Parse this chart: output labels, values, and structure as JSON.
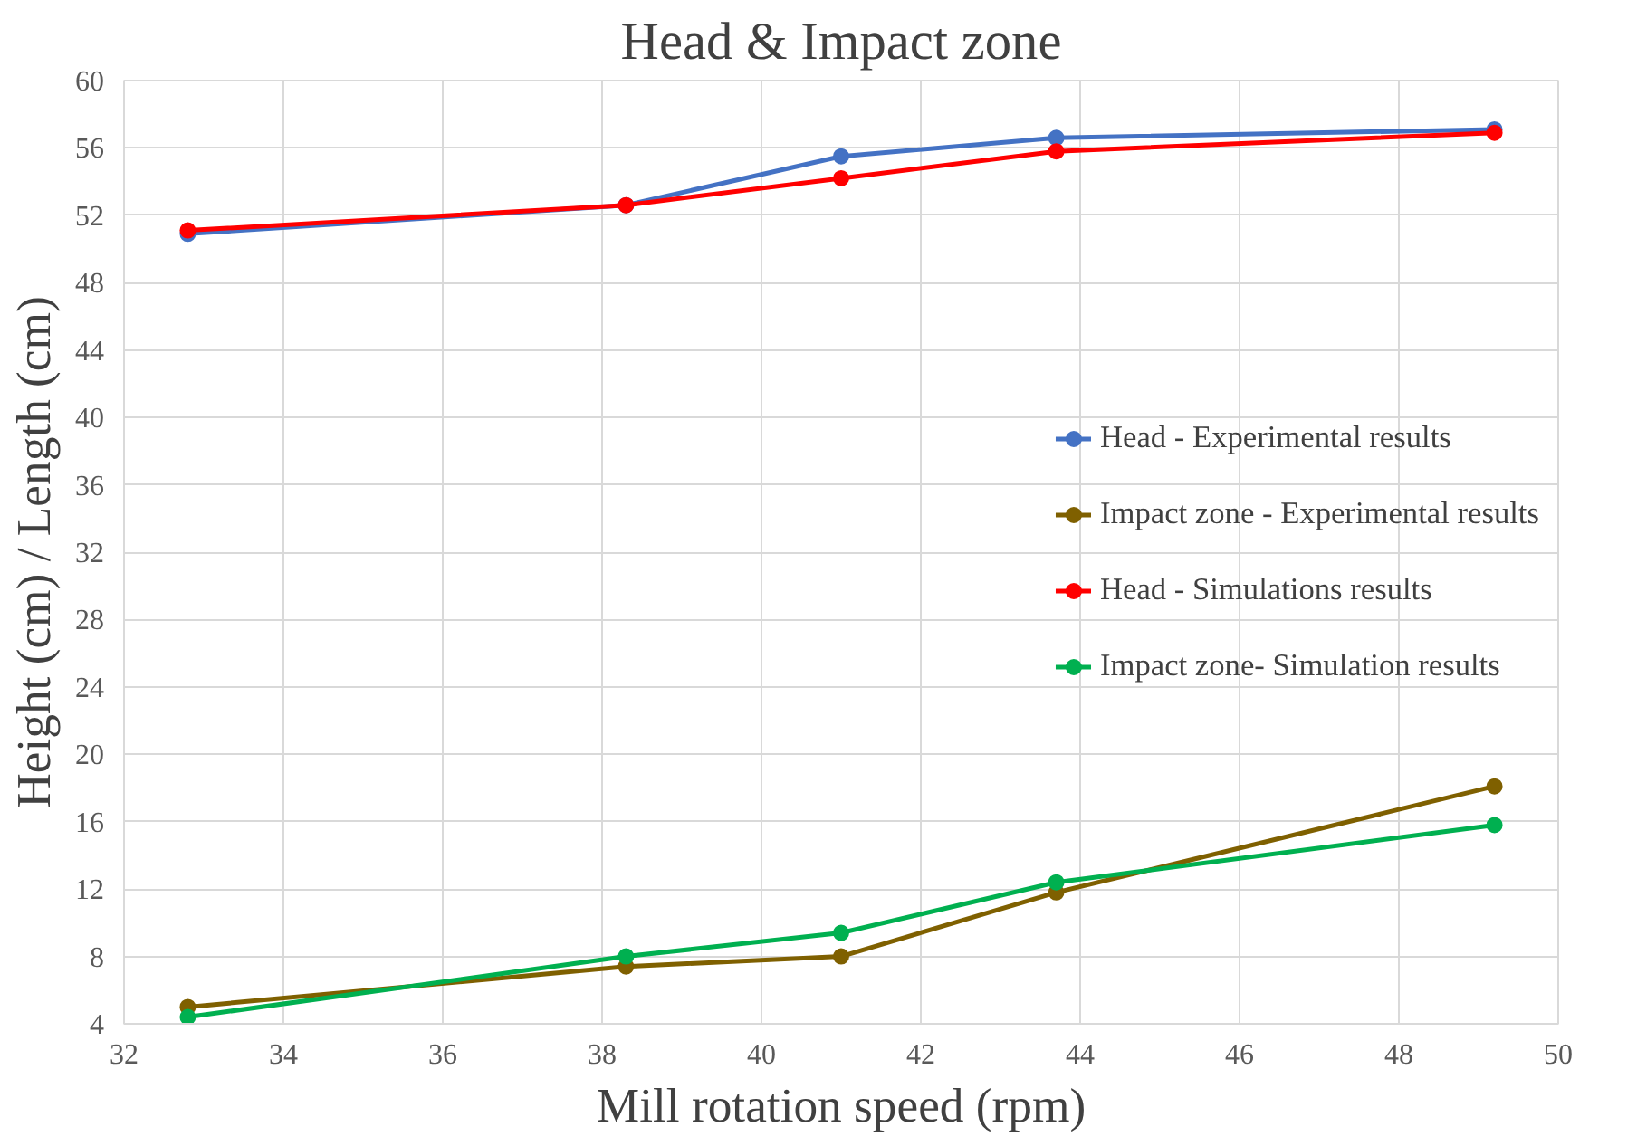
{
  "chart_data": {
    "type": "line",
    "title": "Head & Impact zone",
    "xlabel": "Mill rotation speed (rpm)",
    "ylabel": "Height (cm) / Length (cm)",
    "x": [
      32.8,
      38.3,
      41.0,
      43.7,
      49.2
    ],
    "series": [
      {
        "name": "Head - Experimental results",
        "color": "#4472c4",
        "values": [
          50.9,
          52.6,
          55.5,
          56.6,
          57.1
        ]
      },
      {
        "name": "Impact zone - Experimental results",
        "color": "#7f6000",
        "values": [
          5.0,
          7.4,
          8.0,
          11.8,
          18.1
        ]
      },
      {
        "name": "Head - Simulations results",
        "color": "#ff0000",
        "values": [
          51.1,
          52.6,
          54.2,
          55.8,
          56.9
        ]
      },
      {
        "name": "Impact zone- Simulation results",
        "color": "#00b050",
        "values": [
          4.4,
          8.0,
          9.4,
          12.4,
          15.8
        ]
      }
    ],
    "xlim": [
      32,
      50
    ],
    "xticks": [
      32,
      34,
      36,
      38,
      40,
      42,
      44,
      46,
      48,
      50
    ],
    "ylim": [
      4,
      60
    ],
    "yticks": [
      4,
      8,
      12,
      16,
      20,
      24,
      28,
      32,
      36,
      40,
      44,
      48,
      52,
      56,
      60
    ],
    "grid": true,
    "legend": "right",
    "marker": "circle",
    "line_style": "solid"
  }
}
